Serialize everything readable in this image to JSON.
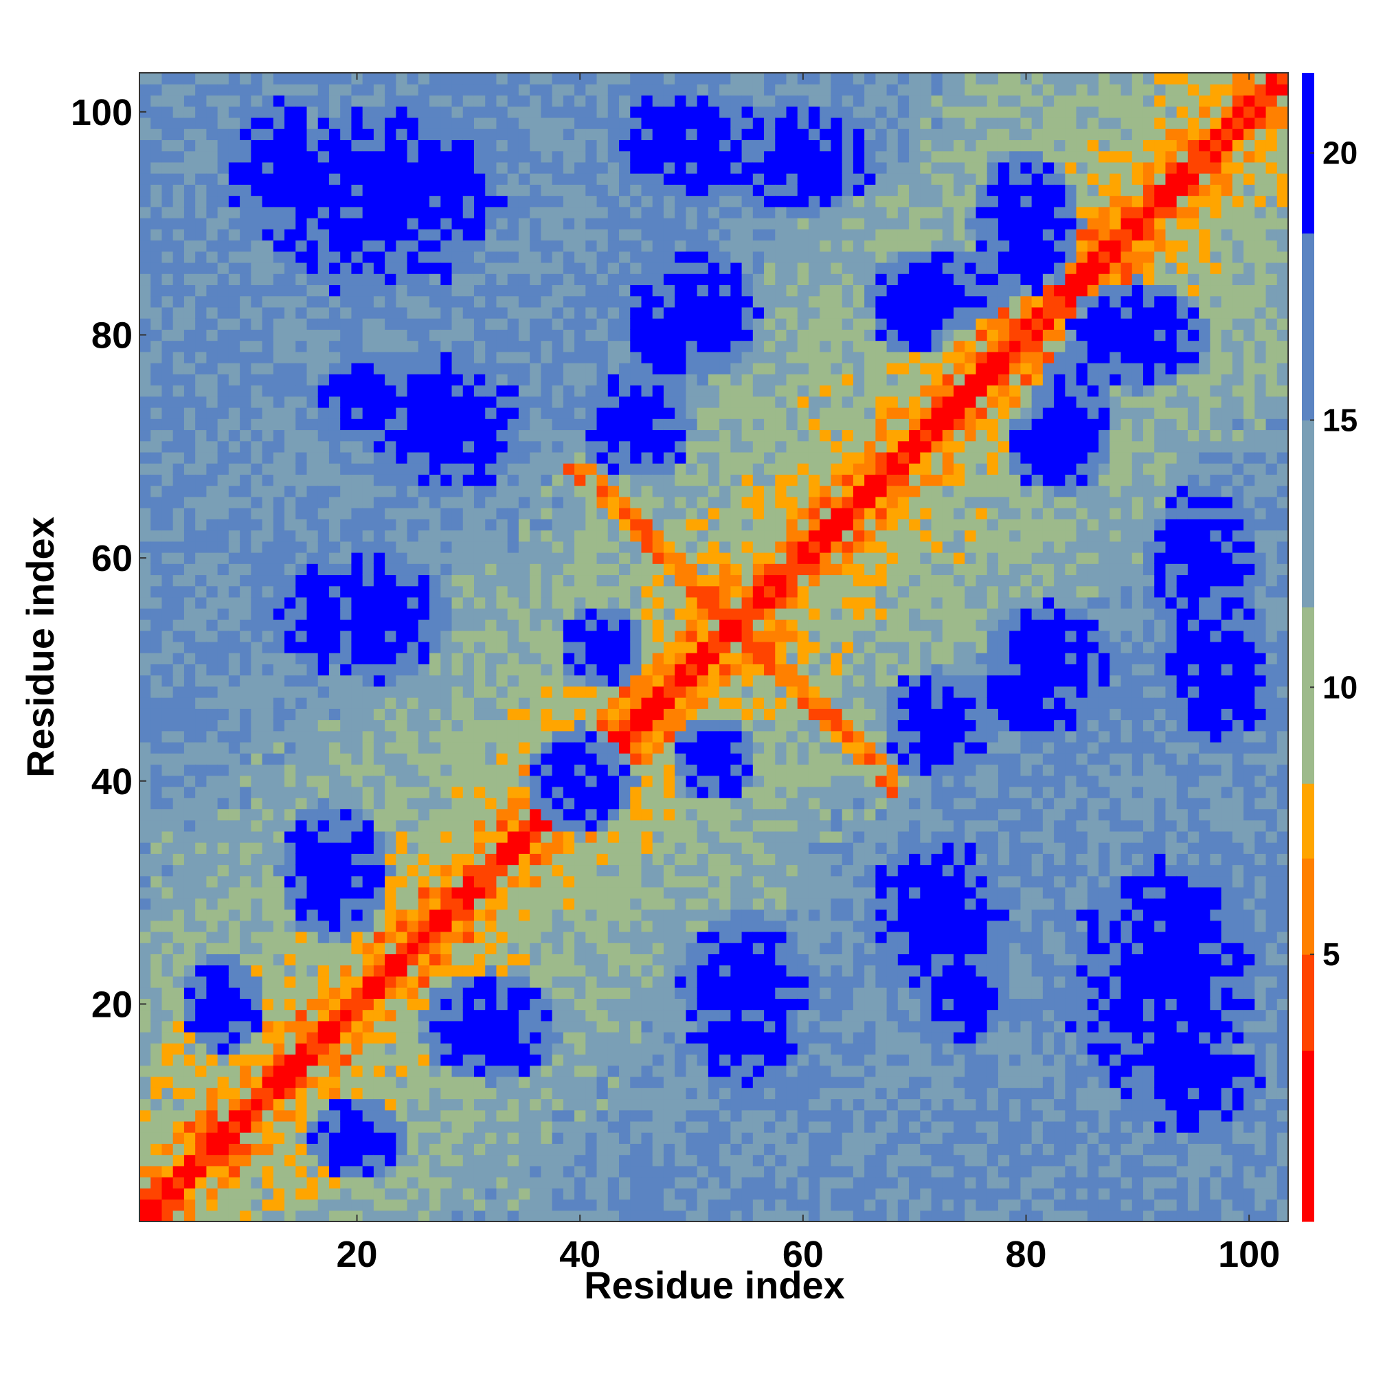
{
  "chart_data": {
    "type": "heatmap",
    "title": "",
    "xlabel": "Residue index",
    "ylabel": "Residue index",
    "n_residues": 103,
    "xlim": [
      0.5,
      103.5
    ],
    "ylim": [
      0.5,
      103.5
    ],
    "x_ticks": [
      20,
      40,
      60,
      80,
      100
    ],
    "y_ticks": [
      20,
      40,
      60,
      80,
      100
    ],
    "colorbar": {
      "range": [
        0,
        21.5
      ],
      "ticks": [
        5,
        10,
        15,
        20
      ],
      "colors": {
        "stop_1": "#ff0000",
        "stop_2": "#ff4400",
        "stop_3": "#ff8000",
        "stop_4": "#ffa500",
        "stop_5": "#9dba8b",
        "stop_6": "#7a9fb6",
        "stop_7": "#5b84c2",
        "stop_8": "#0000ff"
      }
    },
    "grid": false
  }
}
